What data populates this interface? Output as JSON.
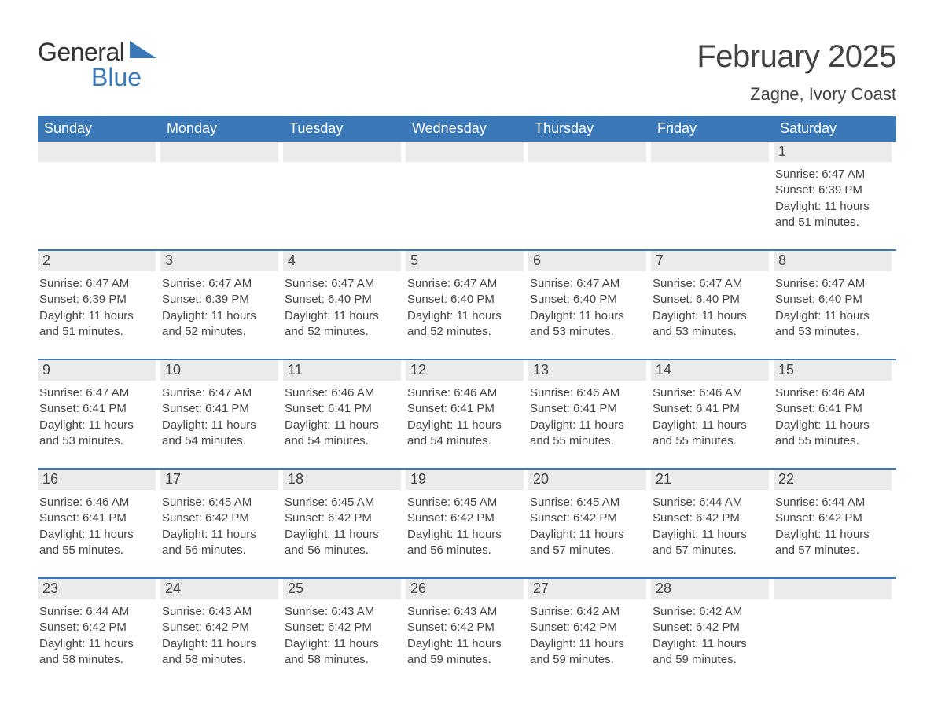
{
  "logo": {
    "text_general": "General",
    "text_blue": "Blue",
    "triangle_color": "#3a78b8"
  },
  "title": "February 2025",
  "location": "Zagne, Ivory Coast",
  "colors": {
    "header_bg": "#3a78b8",
    "header_text": "#ffffff",
    "daynum_bg": "#ebebeb",
    "text": "#444444",
    "week_divider": "#3a78b8",
    "page_bg": "#ffffff"
  },
  "typography": {
    "title_fontsize": 40,
    "location_fontsize": 22,
    "dayheader_fontsize": 18,
    "daynum_fontsize": 18,
    "detail_fontsize": 15,
    "font_family": "Arial"
  },
  "day_names": [
    "Sunday",
    "Monday",
    "Tuesday",
    "Wednesday",
    "Thursday",
    "Friday",
    "Saturday"
  ],
  "weeks": [
    [
      {
        "day": "",
        "sunrise": "",
        "sunset": "",
        "daylight": ""
      },
      {
        "day": "",
        "sunrise": "",
        "sunset": "",
        "daylight": ""
      },
      {
        "day": "",
        "sunrise": "",
        "sunset": "",
        "daylight": ""
      },
      {
        "day": "",
        "sunrise": "",
        "sunset": "",
        "daylight": ""
      },
      {
        "day": "",
        "sunrise": "",
        "sunset": "",
        "daylight": ""
      },
      {
        "day": "",
        "sunrise": "",
        "sunset": "",
        "daylight": ""
      },
      {
        "day": "1",
        "sunrise": "Sunrise: 6:47 AM",
        "sunset": "Sunset: 6:39 PM",
        "daylight": "Daylight: 11 hours and 51 minutes."
      }
    ],
    [
      {
        "day": "2",
        "sunrise": "Sunrise: 6:47 AM",
        "sunset": "Sunset: 6:39 PM",
        "daylight": "Daylight: 11 hours and 51 minutes."
      },
      {
        "day": "3",
        "sunrise": "Sunrise: 6:47 AM",
        "sunset": "Sunset: 6:39 PM",
        "daylight": "Daylight: 11 hours and 52 minutes."
      },
      {
        "day": "4",
        "sunrise": "Sunrise: 6:47 AM",
        "sunset": "Sunset: 6:40 PM",
        "daylight": "Daylight: 11 hours and 52 minutes."
      },
      {
        "day": "5",
        "sunrise": "Sunrise: 6:47 AM",
        "sunset": "Sunset: 6:40 PM",
        "daylight": "Daylight: 11 hours and 52 minutes."
      },
      {
        "day": "6",
        "sunrise": "Sunrise: 6:47 AM",
        "sunset": "Sunset: 6:40 PM",
        "daylight": "Daylight: 11 hours and 53 minutes."
      },
      {
        "day": "7",
        "sunrise": "Sunrise: 6:47 AM",
        "sunset": "Sunset: 6:40 PM",
        "daylight": "Daylight: 11 hours and 53 minutes."
      },
      {
        "day": "8",
        "sunrise": "Sunrise: 6:47 AM",
        "sunset": "Sunset: 6:40 PM",
        "daylight": "Daylight: 11 hours and 53 minutes."
      }
    ],
    [
      {
        "day": "9",
        "sunrise": "Sunrise: 6:47 AM",
        "sunset": "Sunset: 6:41 PM",
        "daylight": "Daylight: 11 hours and 53 minutes."
      },
      {
        "day": "10",
        "sunrise": "Sunrise: 6:47 AM",
        "sunset": "Sunset: 6:41 PM",
        "daylight": "Daylight: 11 hours and 54 minutes."
      },
      {
        "day": "11",
        "sunrise": "Sunrise: 6:46 AM",
        "sunset": "Sunset: 6:41 PM",
        "daylight": "Daylight: 11 hours and 54 minutes."
      },
      {
        "day": "12",
        "sunrise": "Sunrise: 6:46 AM",
        "sunset": "Sunset: 6:41 PM",
        "daylight": "Daylight: 11 hours and 54 minutes."
      },
      {
        "day": "13",
        "sunrise": "Sunrise: 6:46 AM",
        "sunset": "Sunset: 6:41 PM",
        "daylight": "Daylight: 11 hours and 55 minutes."
      },
      {
        "day": "14",
        "sunrise": "Sunrise: 6:46 AM",
        "sunset": "Sunset: 6:41 PM",
        "daylight": "Daylight: 11 hours and 55 minutes."
      },
      {
        "day": "15",
        "sunrise": "Sunrise: 6:46 AM",
        "sunset": "Sunset: 6:41 PM",
        "daylight": "Daylight: 11 hours and 55 minutes."
      }
    ],
    [
      {
        "day": "16",
        "sunrise": "Sunrise: 6:46 AM",
        "sunset": "Sunset: 6:41 PM",
        "daylight": "Daylight: 11 hours and 55 minutes."
      },
      {
        "day": "17",
        "sunrise": "Sunrise: 6:45 AM",
        "sunset": "Sunset: 6:42 PM",
        "daylight": "Daylight: 11 hours and 56 minutes."
      },
      {
        "day": "18",
        "sunrise": "Sunrise: 6:45 AM",
        "sunset": "Sunset: 6:42 PM",
        "daylight": "Daylight: 11 hours and 56 minutes."
      },
      {
        "day": "19",
        "sunrise": "Sunrise: 6:45 AM",
        "sunset": "Sunset: 6:42 PM",
        "daylight": "Daylight: 11 hours and 56 minutes."
      },
      {
        "day": "20",
        "sunrise": "Sunrise: 6:45 AM",
        "sunset": "Sunset: 6:42 PM",
        "daylight": "Daylight: 11 hours and 57 minutes."
      },
      {
        "day": "21",
        "sunrise": "Sunrise: 6:44 AM",
        "sunset": "Sunset: 6:42 PM",
        "daylight": "Daylight: 11 hours and 57 minutes."
      },
      {
        "day": "22",
        "sunrise": "Sunrise: 6:44 AM",
        "sunset": "Sunset: 6:42 PM",
        "daylight": "Daylight: 11 hours and 57 minutes."
      }
    ],
    [
      {
        "day": "23",
        "sunrise": "Sunrise: 6:44 AM",
        "sunset": "Sunset: 6:42 PM",
        "daylight": "Daylight: 11 hours and 58 minutes."
      },
      {
        "day": "24",
        "sunrise": "Sunrise: 6:43 AM",
        "sunset": "Sunset: 6:42 PM",
        "daylight": "Daylight: 11 hours and 58 minutes."
      },
      {
        "day": "25",
        "sunrise": "Sunrise: 6:43 AM",
        "sunset": "Sunset: 6:42 PM",
        "daylight": "Daylight: 11 hours and 58 minutes."
      },
      {
        "day": "26",
        "sunrise": "Sunrise: 6:43 AM",
        "sunset": "Sunset: 6:42 PM",
        "daylight": "Daylight: 11 hours and 59 minutes."
      },
      {
        "day": "27",
        "sunrise": "Sunrise: 6:42 AM",
        "sunset": "Sunset: 6:42 PM",
        "daylight": "Daylight: 11 hours and 59 minutes."
      },
      {
        "day": "28",
        "sunrise": "Sunrise: 6:42 AM",
        "sunset": "Sunset: 6:42 PM",
        "daylight": "Daylight: 11 hours and 59 minutes."
      },
      {
        "day": "",
        "sunrise": "",
        "sunset": "",
        "daylight": ""
      }
    ]
  ]
}
